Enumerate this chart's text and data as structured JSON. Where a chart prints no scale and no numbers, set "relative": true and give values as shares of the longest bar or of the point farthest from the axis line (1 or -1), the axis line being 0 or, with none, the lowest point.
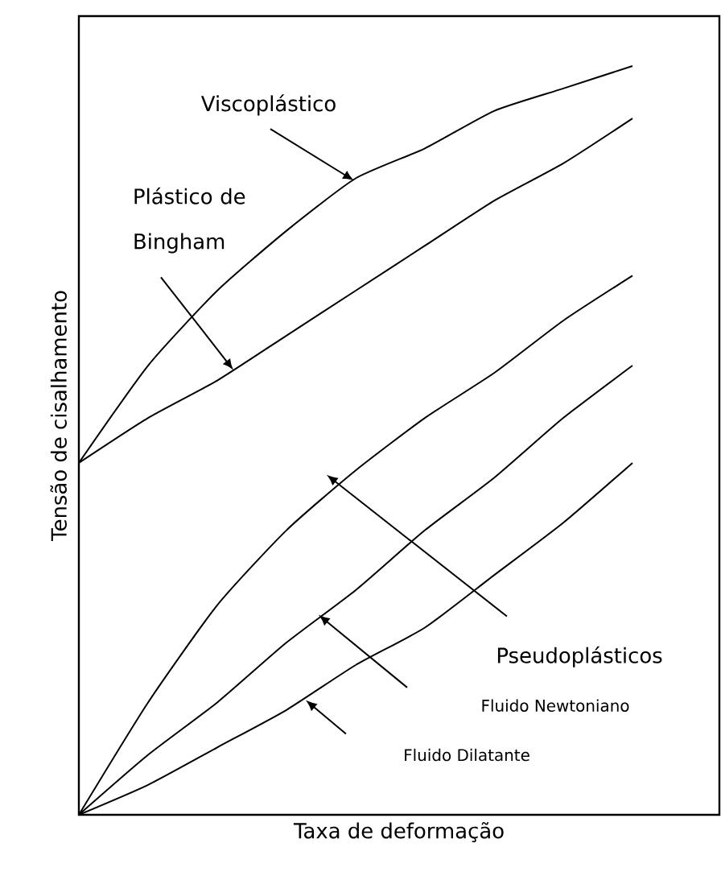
{
  "chart_data": {
    "type": "line",
    "relative": true,
    "xlabel": "Taxa de deformação",
    "ylabel": "Tensão de cisalhamento",
    "categories": [
      null,
      null,
      null,
      null,
      null,
      null,
      null,
      null,
      null
    ],
    "series": [
      {
        "color": "#000000",
        "values": [
          0.47,
          0.6,
          0.7,
          0.78,
          0.85,
          0.89,
          0.94,
          0.97,
          1.0
        ]
      },
      {
        "color": "#000000",
        "values": [
          0.47,
          0.53,
          0.58,
          0.64,
          0.7,
          0.76,
          0.82,
          0.87,
          0.93
        ]
      },
      {
        "color": "#000000",
        "values": [
          0,
          0.15,
          0.28,
          0.38,
          0.46,
          0.53,
          0.59,
          0.66,
          0.72
        ]
      },
      {
        "color": "#000000",
        "values": [
          0,
          0.08,
          0.15,
          0.23,
          0.3,
          0.38,
          0.45,
          0.53,
          0.6
        ]
      },
      {
        "color": "#000000",
        "values": [
          0,
          0.04,
          0.09,
          0.14,
          0.2,
          0.25,
          0.32,
          0.39,
          0.47
        ]
      }
    ],
    "annotations": [
      "Viscoplástico",
      "Plástico de Bingham",
      "Pseudoplásticos",
      "Fluido Newtoniano",
      "Fluido Dilatante"
    ]
  }
}
